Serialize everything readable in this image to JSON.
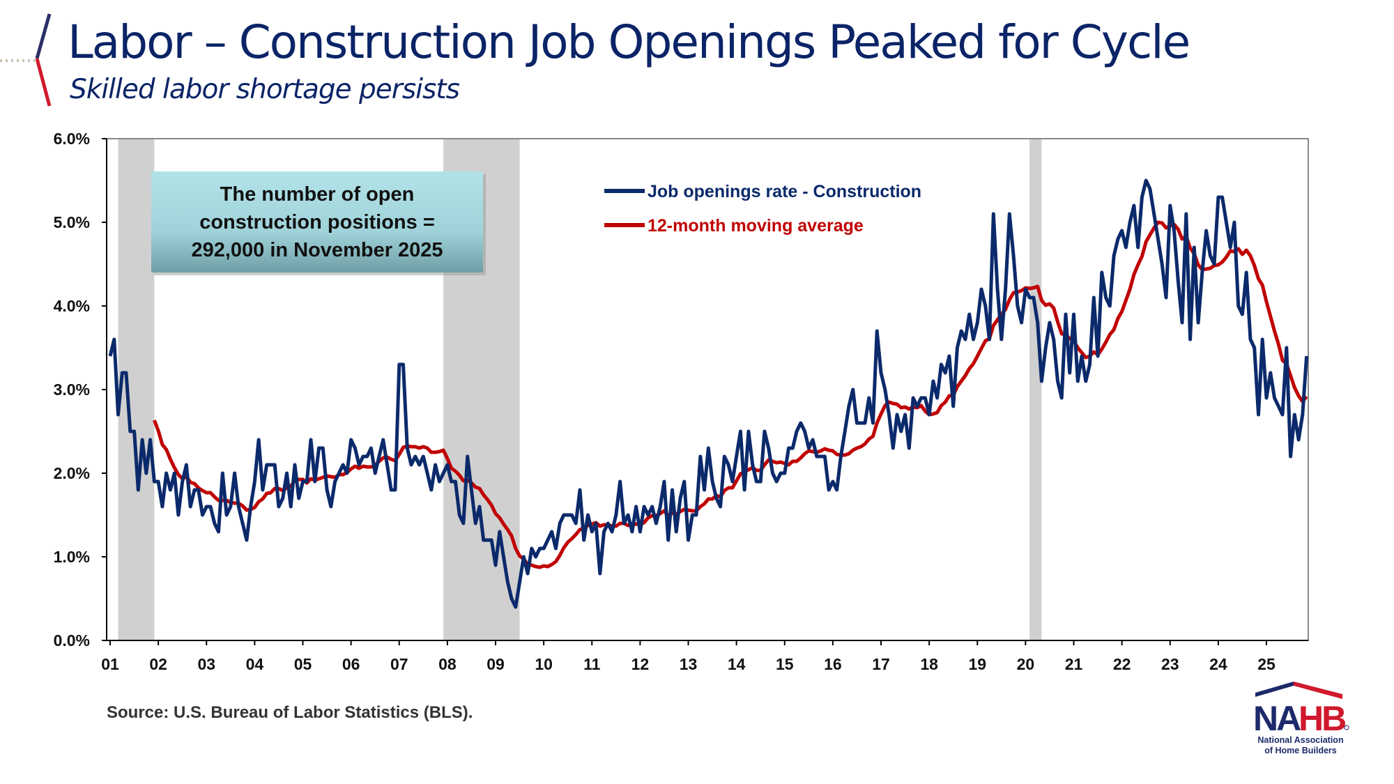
{
  "header": {
    "title": "Labor – Construction Job Openings Peaked for Cycle",
    "subtitle": "Skilled labor shortage persists"
  },
  "footer": {
    "source": "Source: U.S. Bureau of Labor Statistics (BLS).",
    "logo": {
      "text": "NAHB",
      "line1": "National Association",
      "line2": "of Home Builders"
    }
  },
  "colors": {
    "title": "#0b2467",
    "series": "#0b2a6b",
    "moving_average": "#c00000",
    "recession": "#d0d0d0",
    "annotation_bg": "#a8dbe1"
  },
  "chart_data": {
    "type": "line",
    "title": "",
    "xlabel": "",
    "ylabel": "",
    "ylim": [
      0,
      6
    ],
    "yticks": [
      "0.0%",
      "1.0%",
      "2.0%",
      "3.0%",
      "4.0%",
      "5.0%",
      "6.0%"
    ],
    "xtick_labels": [
      "01",
      "02",
      "03",
      "04",
      "05",
      "06",
      "07",
      "08",
      "09",
      "10",
      "11",
      "12",
      "13",
      "14",
      "15",
      "16",
      "17",
      "18",
      "19",
      "20",
      "21",
      "22",
      "23",
      "24",
      "25"
    ],
    "start": "2001-01",
    "frequency": "monthly",
    "grid": false,
    "legend_position": "top-center",
    "annotation": "The number of open construction positions = 292,000 in November 2025",
    "recessions": [
      [
        "2001-03",
        "2001-11"
      ],
      [
        "2007-12",
        "2009-06"
      ],
      [
        "2020-02",
        "2020-04"
      ]
    ],
    "series": [
      {
        "name": "Job openings rate - Construction",
        "values": [
          3.4,
          3.6,
          2.7,
          3.2,
          3.2,
          2.5,
          2.5,
          1.8,
          2.4,
          2.0,
          2.4,
          1.9,
          1.9,
          1.6,
          2.0,
          1.8,
          2.0,
          1.5,
          1.9,
          2.1,
          1.6,
          1.8,
          1.8,
          1.5,
          1.6,
          1.6,
          1.4,
          1.3,
          2.0,
          1.5,
          1.6,
          2.0,
          1.6,
          1.4,
          1.2,
          1.6,
          1.9,
          2.4,
          1.8,
          2.1,
          2.1,
          2.1,
          1.6,
          1.7,
          2.0,
          1.6,
          2.1,
          1.7,
          1.9,
          1.9,
          2.4,
          1.9,
          2.3,
          2.3,
          1.8,
          1.6,
          1.9,
          2.0,
          2.1,
          2.0,
          2.4,
          2.3,
          2.1,
          2.2,
          2.2,
          2.3,
          2.0,
          2.2,
          2.4,
          2.1,
          1.8,
          1.8,
          3.3,
          3.3,
          2.3,
          2.1,
          2.2,
          2.1,
          2.2,
          2.0,
          1.8,
          2.1,
          1.9,
          2.0,
          2.1,
          1.9,
          1.9,
          1.5,
          1.4,
          2.2,
          1.8,
          1.4,
          1.6,
          1.2,
          1.2,
          1.2,
          0.9,
          1.3,
          1.0,
          0.7,
          0.5,
          0.4,
          0.7,
          1.0,
          0.8,
          1.1,
          1.0,
          1.1,
          1.1,
          1.2,
          1.3,
          1.1,
          1.4,
          1.5,
          1.5,
          1.5,
          1.4,
          1.8,
          1.2,
          1.5,
          1.3,
          1.4,
          0.8,
          1.3,
          1.4,
          1.3,
          1.5,
          1.9,
          1.4,
          1.5,
          1.3,
          1.6,
          1.3,
          1.6,
          1.5,
          1.6,
          1.4,
          1.6,
          1.9,
          1.2,
          1.8,
          1.3,
          1.7,
          1.9,
          1.2,
          1.5,
          1.5,
          2.2,
          1.8,
          2.3,
          1.9,
          1.7,
          1.6,
          2.2,
          2.1,
          1.9,
          2.2,
          2.5,
          1.8,
          2.5,
          2.1,
          1.9,
          1.9,
          2.5,
          2.3,
          2.0,
          1.9,
          2.0,
          2.0,
          2.3,
          2.3,
          2.5,
          2.6,
          2.5,
          2.3,
          2.4,
          2.2,
          2.2,
          2.2,
          1.8,
          1.9,
          1.8,
          2.2,
          2.5,
          2.8,
          3.0,
          2.6,
          2.6,
          2.6,
          2.9,
          2.6,
          3.7,
          3.2,
          3.0,
          2.7,
          2.3,
          2.7,
          2.5,
          2.7,
          2.3,
          2.9,
          2.8,
          2.9,
          2.9,
          2.7,
          3.1,
          2.9,
          3.3,
          3.2,
          3.4,
          2.8,
          3.5,
          3.7,
          3.6,
          3.9,
          3.6,
          3.8,
          4.2,
          4.0,
          3.6,
          5.1,
          4.2,
          3.6,
          4.2,
          5.1,
          4.6,
          4.0,
          3.8,
          4.2,
          4.1,
          4.1,
          3.8,
          3.1,
          3.5,
          3.8,
          3.6,
          3.1,
          2.9,
          3.9,
          3.2,
          3.9,
          3.1,
          3.4,
          3.1,
          3.3,
          4.1,
          3.4,
          4.4,
          4.1,
          4.0,
          4.6,
          4.8,
          4.9,
          4.7,
          5.0,
          5.2,
          4.7,
          5.3,
          5.5,
          5.4,
          5.1,
          4.8,
          4.5,
          4.1,
          5.2,
          4.9,
          4.3,
          3.8,
          5.1,
          3.6,
          4.7,
          3.8,
          4.4,
          4.9,
          4.6,
          4.5,
          5.3,
          5.3,
          5.0,
          4.7,
          5.0,
          4.0,
          3.9,
          4.4,
          3.6,
          3.5,
          2.7,
          3.6,
          2.9,
          3.2,
          2.9,
          2.8,
          2.7,
          3.5,
          2.2,
          2.7,
          2.4,
          2.7,
          3.4
        ]
      },
      {
        "name": "12-month moving average",
        "window": 12
      }
    ]
  }
}
